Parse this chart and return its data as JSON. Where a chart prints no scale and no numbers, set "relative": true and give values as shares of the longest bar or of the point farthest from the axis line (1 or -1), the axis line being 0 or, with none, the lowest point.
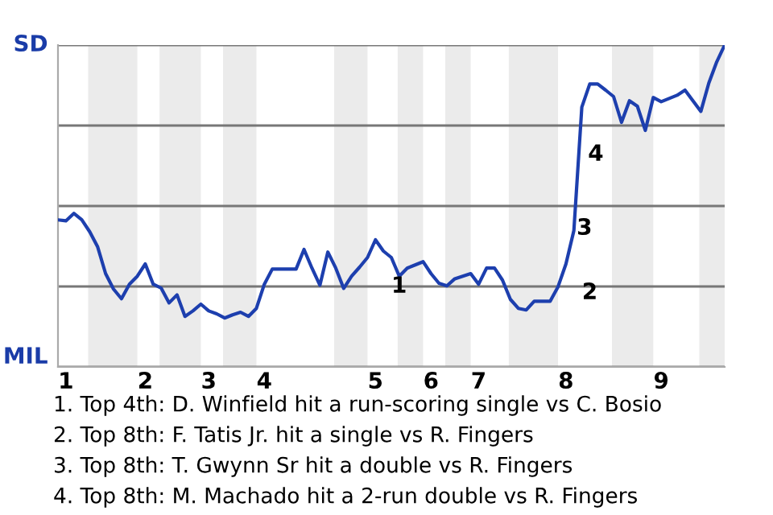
{
  "chart_data": {
    "type": "line",
    "relative": true,
    "categories": [
      null,
      "1",
      null,
      null,
      null,
      null,
      null,
      null,
      null,
      null,
      null,
      "2",
      null,
      null,
      null,
      null,
      null,
      null,
      null,
      "3",
      null,
      null,
      null,
      null,
      null,
      null,
      "4",
      null,
      null,
      null,
      null,
      null,
      null,
      null,
      null,
      null,
      null,
      null,
      null,
      null,
      "5",
      null,
      null,
      null,
      null,
      null,
      null,
      "6",
      null,
      null,
      null,
      null,
      null,
      "7",
      null,
      null,
      null,
      null,
      null,
      null,
      null,
      null,
      null,
      null,
      "8",
      null,
      null,
      null,
      null,
      null,
      null,
      null,
      null,
      null,
      null,
      null,
      "9",
      null,
      null,
      null,
      null,
      null,
      null,
      null,
      null
    ],
    "series": [
      {
        "color": "#1d3fae",
        "values": [
          0.457,
          0.454,
          0.477,
          0.457,
          0.42,
          0.373,
          0.29,
          0.242,
          0.212,
          0.257,
          0.282,
          0.32,
          0.257,
          0.245,
          0.199,
          0.224,
          0.157,
          0.174,
          0.195,
          0.174,
          0.165,
          0.152,
          0.162,
          0.17,
          0.157,
          0.182,
          0.257,
          0.304,
          0.304,
          0.304,
          0.304,
          0.365,
          0.307,
          0.254,
          0.357,
          0.307,
          0.244,
          0.282,
          0.31,
          0.34,
          0.395,
          0.36,
          0.34,
          0.282,
          0.307,
          0.317,
          0.327,
          0.29,
          0.26,
          0.252,
          0.274,
          0.282,
          0.29,
          0.257,
          0.307,
          0.307,
          0.27,
          0.21,
          0.182,
          0.177,
          0.204,
          0.204,
          0.204,
          0.249,
          0.32,
          0.424,
          0.807,
          0.879,
          0.879,
          0.86,
          0.84,
          0.76,
          0.827,
          0.81,
          0.735,
          0.837,
          0.824,
          0.834,
          0.844,
          0.86,
          0.827,
          0.794,
          0.882,
          0.948,
          1
        ]
      }
    ],
    "grid": "y",
    "annotations": [
      "SD",
      "MIL",
      "1",
      "2",
      "3",
      "4",
      "1. Top 4th: D. Winfield hit a run-scoring single vs C. Bosio",
      "2. Top 8th: F. Tatis Jr. hit a single vs R. Fingers",
      "3. Top 8th: T. Gwynn Sr hit a double vs R. Fingers",
      "4. Top 8th: M. Machado hit a 2-run double vs R. Fingers"
    ]
  }
}
